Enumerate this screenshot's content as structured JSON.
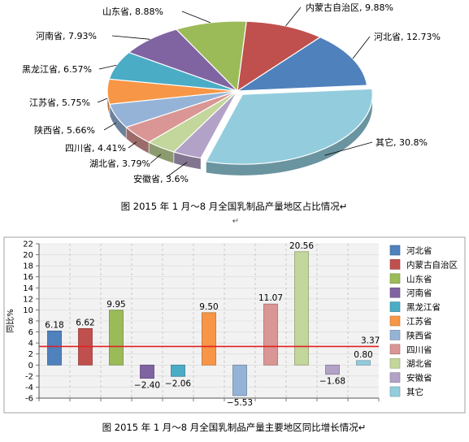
{
  "chart_data": [
    {
      "type": "pie",
      "title": "图    2015 年 1 月～8 月全国乳制品产量地区占比情况↵",
      "label_separator": ", ",
      "slices": [
        {
          "label": "内蒙古自治区",
          "value": 9.88,
          "text": "9.88%",
          "color": "#c0504d"
        },
        {
          "label": "河北省",
          "value": 12.73,
          "text": "12.73%",
          "color": "#4f81bd"
        },
        {
          "label": "其它",
          "value": 30.8,
          "text": "30.8%",
          "color": "#93cddd"
        },
        {
          "label": "安徽省",
          "value": 3.6,
          "text": "3.6%",
          "color": "#b3a2c7"
        },
        {
          "label": "湖北省",
          "value": 3.79,
          "text": "3.79%",
          "color": "#c3d69b"
        },
        {
          "label": "四川省",
          "value": 4.41,
          "text": "4.41%",
          "color": "#d99694"
        },
        {
          "label": "陕西省",
          "value": 5.66,
          "text": "5.66%",
          "color": "#95b3d7"
        },
        {
          "label": "江苏省",
          "value": 5.75,
          "text": "5.75%",
          "color": "#f79646"
        },
        {
          "label": "黑龙江省",
          "value": 6.57,
          "text": "6.57%",
          "color": "#4bacc6"
        },
        {
          "label": "河南省",
          "value": 7.93,
          "text": "7.93%",
          "color": "#8064a2"
        },
        {
          "label": "山东省",
          "value": 8.88,
          "text": "8.88%",
          "color": "#9bbb59"
        }
      ],
      "paragraph_mark": "↵"
    },
    {
      "type": "bar",
      "title": "图    2015 年 1 月～8 月全国乳制品产量主要地区同比增长情况↵",
      "ylabel": "同比%",
      "ylim": [
        -6,
        22
      ],
      "yticks": [
        "22",
        "20",
        "18",
        "16",
        "14",
        "12",
        "10",
        "8",
        "6",
        "4",
        "2",
        "0",
        "-2",
        "-4",
        "-6"
      ],
      "grid": true,
      "legend_position": "right",
      "categories": [
        "河北省",
        "内蒙古自治区",
        "山东省",
        "河南省",
        "黑龙江省",
        "江苏省",
        "陕西省",
        "四川省",
        "湖北省",
        "安徽省",
        "其它"
      ],
      "values": [
        6.18,
        6.62,
        9.95,
        -2.4,
        -2.06,
        9.5,
        -5.53,
        11.07,
        20.56,
        -1.68,
        0.8
      ],
      "value_labels": [
        "6.18",
        "6.62",
        "9.95",
        "−2.40",
        "−2.06",
        "9.50",
        "−5.53",
        "11.07",
        "20.56",
        "−1.68",
        "0.80"
      ],
      "colors": [
        "#4f81bd",
        "#c0504d",
        "#9bbb59",
        "#8064a2",
        "#4bacc6",
        "#f79646",
        "#95b3d7",
        "#d99694",
        "#c3d69b",
        "#b3a2c7",
        "#93cddd"
      ],
      "reference_line": {
        "value": 3.37,
        "label": "3.37",
        "color": "#e02020"
      }
    }
  ]
}
